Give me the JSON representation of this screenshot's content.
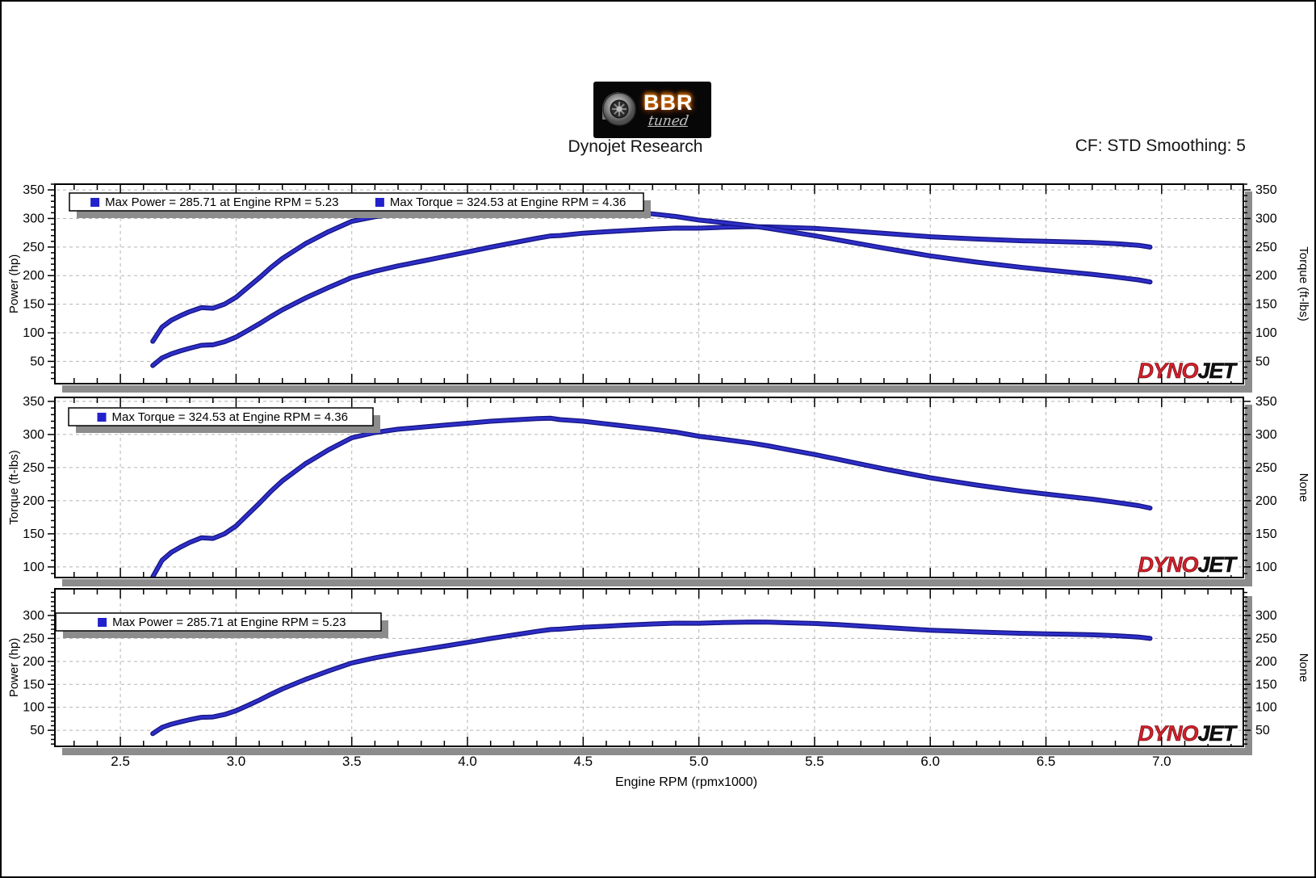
{
  "header": {
    "logo_main": "BBR",
    "logo_sub": "tuned",
    "title": "Dynojet Research",
    "settings_label": "CF: STD Smoothing: 5"
  },
  "branding": {
    "watermark_left": "DYNO",
    "watermark_right": "JET"
  },
  "max_values": {
    "max_power_hp": 285.71,
    "max_power_rpm": 5.23,
    "max_torque_ftlbs": 324.53,
    "max_torque_rpm": 4.36
  },
  "colors": {
    "curve_core": "#2e2ec8",
    "curve_edge": "#141480",
    "legend_marker": "#2222cc",
    "grid": "#b5b5b5",
    "shadow": "#8c8c8c",
    "dyno_red": "#d21f2b",
    "jet_black": "#111111",
    "axis_black": "#000000"
  },
  "chart_data": {
    "type": "line",
    "xlabel": "Engine RPM (rpmx1000)",
    "xaxis": {
      "xlim": [
        2.217,
        7.353
      ],
      "major_ticks": [
        2.5,
        3.0,
        3.5,
        4.0,
        4.5,
        5.0,
        5.5,
        6.0,
        6.5,
        7.0
      ],
      "tick_labels": [
        "2.5",
        "3.0",
        "3.5",
        "4.0",
        "4.5",
        "5.0",
        "5.5",
        "6.0",
        "6.5",
        "7.0"
      ],
      "minor_step": 0.1
    },
    "x": [
      2.64,
      2.68,
      2.72,
      2.76,
      2.8,
      2.85,
      2.9,
      2.95,
      3.0,
      3.05,
      3.1,
      3.15,
      3.2,
      3.3,
      3.4,
      3.5,
      3.6,
      3.7,
      3.8,
      3.9,
      4.0,
      4.1,
      4.2,
      4.3,
      4.36,
      4.4,
      4.5,
      4.6,
      4.7,
      4.8,
      4.9,
      5.0,
      5.1,
      5.23,
      5.3,
      5.4,
      5.5,
      5.6,
      5.7,
      5.8,
      5.9,
      6.0,
      6.1,
      6.2,
      6.3,
      6.4,
      6.5,
      6.6,
      6.7,
      6.8,
      6.9,
      6.95
    ],
    "series": [
      {
        "key": "power",
        "name": "Power (hp)",
        "values": [
          42.7,
          56.1,
          63.2,
          68.3,
          73,
          78.1,
          79,
          84.3,
          92.5,
          103.9,
          115.7,
          128.3,
          140.1,
          160.9,
          179.3,
          196.6,
          207.7,
          217,
          225,
          233.2,
          241.4,
          249.8,
          257.5,
          265.3,
          269.4,
          270.2,
          274.2,
          276.8,
          279.2,
          281.5,
          283.2,
          283,
          284.5,
          285.71,
          285.3,
          284,
          282.5,
          280,
          277,
          274,
          271,
          268,
          266,
          264,
          262.5,
          261,
          260,
          259,
          258,
          256,
          253,
          250
        ]
      },
      {
        "key": "torque",
        "name": "Torque (ft-lbs)",
        "values": [
          85,
          110,
          122,
          130,
          137,
          144,
          143,
          150,
          162,
          179,
          196,
          214,
          230,
          256,
          277,
          295,
          303,
          308,
          311,
          314,
          317,
          320,
          322,
          324,
          324.53,
          322.5,
          320,
          316,
          312,
          308,
          303.5,
          297.3,
          293,
          286.9,
          282.8,
          276.2,
          269.8,
          262.6,
          255.3,
          248.1,
          241.3,
          234.6,
          229,
          223.6,
          218.8,
          214.2,
          210.1,
          206.1,
          202.3,
          197.7,
          192.6,
          188.9
        ]
      }
    ],
    "panels": [
      {
        "name": "power-torque-panel",
        "ylabel_left": "Power (hp)",
        "ylabel_right": "Torque (ft-lbs)",
        "ylim": [
          11,
          360
        ],
        "yticks": [
          50,
          100,
          150,
          200,
          250,
          300,
          350
        ],
        "minor_step": 10,
        "grid": true,
        "legend": [
          "Max Power = 285.71 at Engine RPM = 5.23",
          "Max Torque = 324.53 at Engine RPM = 4.36"
        ],
        "series_keys": [
          "power",
          "torque"
        ]
      },
      {
        "name": "torque-panel",
        "ylabel_left": "Torque (ft-lbs)",
        "ylabel_right": "None",
        "ylim": [
          84,
          356
        ],
        "yticks": [
          100,
          150,
          200,
          250,
          300,
          350
        ],
        "minor_step": 10,
        "grid": true,
        "legend": [
          "Max Torque = 324.53 at Engine RPM = 4.36"
        ],
        "series_keys": [
          "torque"
        ]
      },
      {
        "name": "power-panel",
        "ylabel_left": "Power (hp)",
        "ylabel_right": "None",
        "ylim": [
          15,
          358
        ],
        "yticks": [
          50,
          100,
          150,
          200,
          250,
          300
        ],
        "minor_step": 10,
        "grid": true,
        "legend": [
          "Max Power = 285.71 at Engine RPM = 5.23"
        ],
        "series_keys": [
          "power"
        ]
      }
    ]
  }
}
